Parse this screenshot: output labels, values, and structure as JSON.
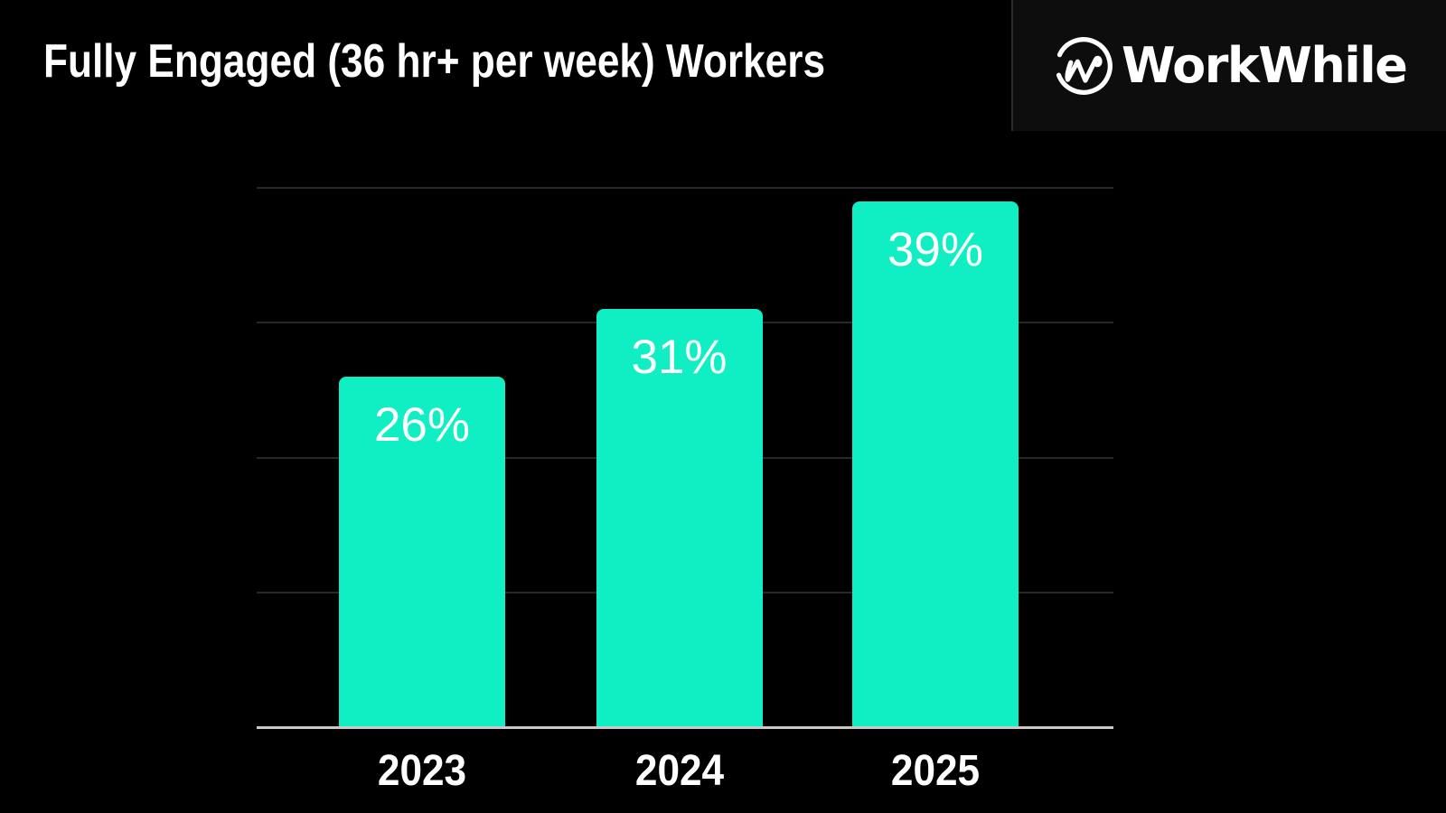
{
  "header": {
    "title": "Fully Engaged (36 hr+ per week) Workers",
    "brand": "WorkWhile"
  },
  "colors": {
    "background": "#000000",
    "bar": "#10EFC4",
    "axis_line": "#C9C7C9",
    "gridline": "#282828",
    "text": "#FFFFFF",
    "divider": "#2B2B2B",
    "header_panel": "#0D0D0D"
  },
  "chart_data": {
    "type": "bar",
    "title": "Fully Engaged (36 hr+ per week) Workers",
    "categories": [
      "2023",
      "2024",
      "2025"
    ],
    "values": [
      26,
      31,
      39
    ],
    "value_labels": [
      "26%",
      "31%",
      "39%"
    ],
    "unit": "%",
    "ylim": [
      0,
      42
    ],
    "gridlines_pct": [
      10,
      20,
      30,
      40
    ],
    "xlabel": "",
    "ylabel": "",
    "legend": "none",
    "grid": "horizontal",
    "y_tick_labels_visible": false,
    "bar_color": "#10EFC4",
    "value_label_position": "inside-top"
  }
}
